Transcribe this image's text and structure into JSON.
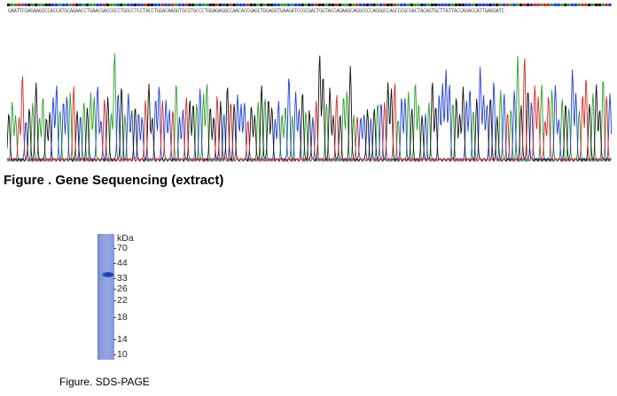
{
  "sequencing": {
    "sequence": "GAATTCGAGAAGGCCACCATGCAGAACCTGAACGACCGCCTGGCCTCCTACCTGGACAAGGTGCGTGCCCTGGAGAGGCCAACACCGAGCTGGAGGTGAAGATCCGCGACTGGTACCAGAAGCAGGCCCCAGGGCCAGCCCGCGACTACAGTGCTTATTACCAGACCATTGAGGATC",
    "caption": "Figure . Gene Sequencing (extract)",
    "base_colors": {
      "A": "#2ca02c",
      "C": "#1f3fd6",
      "G": "#111111",
      "T": "#d62728"
    }
  },
  "gel": {
    "unit_label": "kDa",
    "markers": [
      "70",
      "44",
      "33",
      "26",
      "22",
      "18",
      "14",
      "10"
    ],
    "caption": "Figure. SDS-PAGE"
  }
}
